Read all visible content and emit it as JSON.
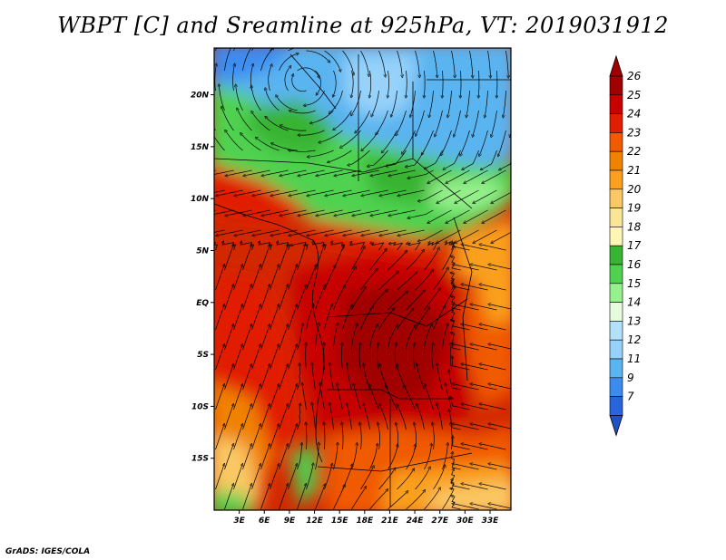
{
  "title": "WBPT [C] and Sreamline at 925hPa, VT: 2019031912",
  "credit": "GrADS: IGES/COLA",
  "map": {
    "lon_range": [
      0,
      35.5
    ],
    "lat_range": [
      -20,
      24.5
    ],
    "lat_ticks": [
      {
        "value": 20,
        "label": "20N"
      },
      {
        "value": 15,
        "label": "15N"
      },
      {
        "value": 10,
        "label": "10N"
      },
      {
        "value": 5,
        "label": "5N"
      },
      {
        "value": 0,
        "label": "EQ"
      },
      {
        "value": -5,
        "label": "5S"
      },
      {
        "value": -10,
        "label": "10S"
      },
      {
        "value": -15,
        "label": "15S"
      }
    ],
    "lon_ticks": [
      {
        "value": 3,
        "label": "3E"
      },
      {
        "value": 6,
        "label": "6E"
      },
      {
        "value": 9,
        "label": "9E"
      },
      {
        "value": 12,
        "label": "12E"
      },
      {
        "value": 15,
        "label": "15E"
      },
      {
        "value": 18,
        "label": "18E"
      },
      {
        "value": 21,
        "label": "21E"
      },
      {
        "value": 24,
        "label": "24E"
      },
      {
        "value": 27,
        "label": "27E"
      },
      {
        "value": 30,
        "label": "30E"
      },
      {
        "value": 33,
        "label": "33E"
      }
    ]
  },
  "colorbar": {
    "levels": [
      {
        "label": "26",
        "color": "#a00000"
      },
      {
        "label": "25",
        "color": "#c80000"
      },
      {
        "label": "24",
        "color": "#e11e00"
      },
      {
        "label": "23",
        "color": "#f05a00"
      },
      {
        "label": "22",
        "color": "#f08200"
      },
      {
        "label": "21",
        "color": "#faa01e"
      },
      {
        "label": "20",
        "color": "#fac864"
      },
      {
        "label": "19",
        "color": "#fae696"
      },
      {
        "label": "18",
        "color": "#fff5b4"
      },
      {
        "label": "17",
        "color": "#37b432"
      },
      {
        "label": "16",
        "color": "#50d250"
      },
      {
        "label": "15",
        "color": "#96f08c"
      },
      {
        "label": "14",
        "color": "#e6fadc"
      },
      {
        "label": "13",
        "color": "#b4e1fa"
      },
      {
        "label": "12",
        "color": "#96d2fa"
      },
      {
        "label": "11",
        "color": "#5ab4f0"
      },
      {
        "label": "9",
        "color": "#3c8cf0"
      },
      {
        "label": "7",
        "color": "#2864dc"
      }
    ],
    "top_color": "#a00000",
    "bottom_color": "#1e50c8"
  }
}
